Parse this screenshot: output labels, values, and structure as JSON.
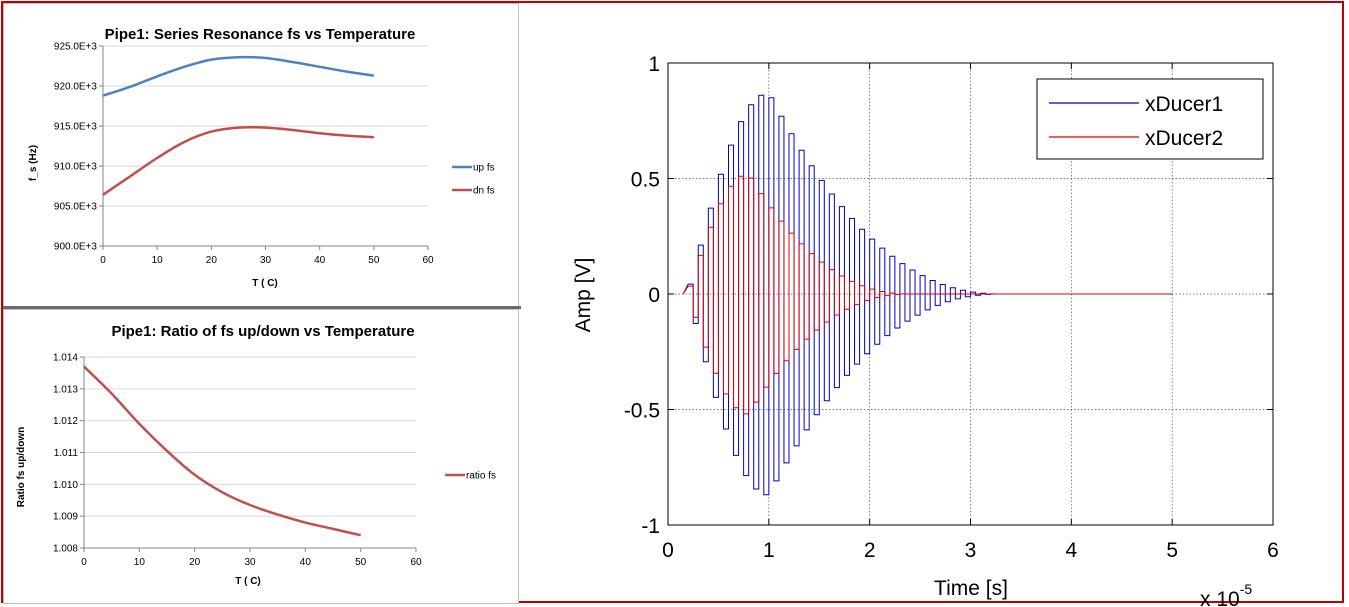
{
  "chart_data": [
    {
      "type": "line",
      "title": "Pipe1: Series Resonance fs  vs Temperature",
      "xlabel": "T ( C)",
      "ylabel": "f_s (Hz)",
      "xlim": [
        0,
        60
      ],
      "ylim": [
        900000,
        925000
      ],
      "xticks": [
        "0",
        "10",
        "20",
        "30",
        "40",
        "50",
        "60"
      ],
      "yticks": [
        "900.0E+3",
        "905.0E+3",
        "910.0E+3",
        "915.0E+3",
        "920.0E+3",
        "925.0E+3"
      ],
      "grid": "horizontal",
      "legend_position": "right",
      "series": [
        {
          "name": "up fs",
          "color": "#4f81bd",
          "x": [
            0,
            5,
            10,
            15,
            20,
            25,
            30,
            35,
            40,
            45,
            50
          ],
          "values": [
            918800,
            919900,
            921200,
            922400,
            923300,
            923600,
            923500,
            923000,
            922400,
            921800,
            921300
          ]
        },
        {
          "name": "dn fs",
          "color": "#c0504d",
          "x": [
            0,
            5,
            10,
            15,
            20,
            25,
            30,
            35,
            40,
            45,
            50
          ],
          "values": [
            906400,
            908700,
            911000,
            913000,
            914300,
            914800,
            914800,
            914500,
            914100,
            913800,
            913600
          ]
        }
      ]
    },
    {
      "type": "line",
      "title": "Pipe1: Ratio of fs up/down vs Temperature",
      "xlabel": "T ( C)",
      "ylabel": "Ratio fs up/down",
      "xlim": [
        0,
        60
      ],
      "ylim": [
        1.008,
        1.014
      ],
      "xticks": [
        "0",
        "10",
        "20",
        "30",
        "40",
        "50",
        "60"
      ],
      "yticks": [
        "1.008",
        "1.009",
        "1.010",
        "1.011",
        "1.012",
        "1.013",
        "1.014"
      ],
      "grid": "horizontal",
      "legend_position": "right",
      "series": [
        {
          "name": "ratio fs",
          "color": "#c0504d",
          "x": [
            0,
            5,
            10,
            15,
            20,
            25,
            30,
            35,
            40,
            45,
            50
          ],
          "values": [
            1.0137,
            1.01285,
            1.0119,
            1.01105,
            1.0103,
            1.00975,
            1.00935,
            1.00905,
            1.0088,
            1.0086,
            1.0084
          ]
        }
      ]
    },
    {
      "type": "line",
      "title": "",
      "xlabel": "Time [s]",
      "ylabel": "Amp [V]",
      "x_multiplier": "x 10",
      "x_multiplier_exponent": "-5",
      "xlim": [
        0,
        6
      ],
      "ylim": [
        -1,
        1
      ],
      "xticks": [
        "0",
        "1",
        "2",
        "3",
        "4",
        "5",
        "6"
      ],
      "yticks": [
        "-1",
        "-0.5",
        "0",
        "0.5",
        "1"
      ],
      "grid": true,
      "legend_position": "top-right",
      "series": [
        {
          "name": "xDucer1",
          "color": "#0000cc",
          "waveform": {
            "start": 0.15,
            "end": 5.0,
            "period": 0.1,
            "onset": 0.2,
            "peak_t": 1.0,
            "peak_amp": 0.87,
            "decay_end": 3.3
          }
        },
        {
          "name": "xDucer2",
          "color": "#e00000",
          "waveform": {
            "start": 0.15,
            "end": 5.0,
            "period": 0.1,
            "onset": 0.2,
            "peak_t": 0.8,
            "peak_amp": 0.52,
            "decay_end": 2.4
          }
        }
      ]
    }
  ]
}
